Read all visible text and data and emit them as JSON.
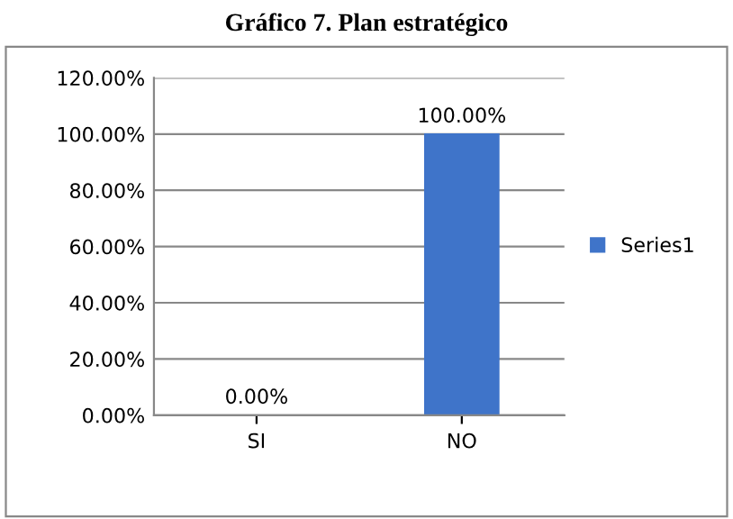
{
  "chart_data": {
    "type": "bar",
    "title": "Gráfico 7. Plan estratégico",
    "categories": [
      "SI",
      "NO"
    ],
    "series": [
      {
        "name": "Series1",
        "color": "#3f74c9",
        "values": [
          0,
          100
        ],
        "value_labels": [
          "0.00%",
          "100.00%"
        ]
      }
    ],
    "ylim": [
      0,
      120
    ],
    "yticks": [
      {
        "value": 0,
        "label": "0.00%"
      },
      {
        "value": 20,
        "label": "20.00%"
      },
      {
        "value": 40,
        "label": "40.00%"
      },
      {
        "value": 60,
        "label": "60.00%"
      },
      {
        "value": 80,
        "label": "80.00%"
      },
      {
        "value": 100,
        "label": "100.00%"
      },
      {
        "value": 120,
        "label": "120.00%"
      }
    ],
    "grid": "y",
    "legend": "right"
  }
}
